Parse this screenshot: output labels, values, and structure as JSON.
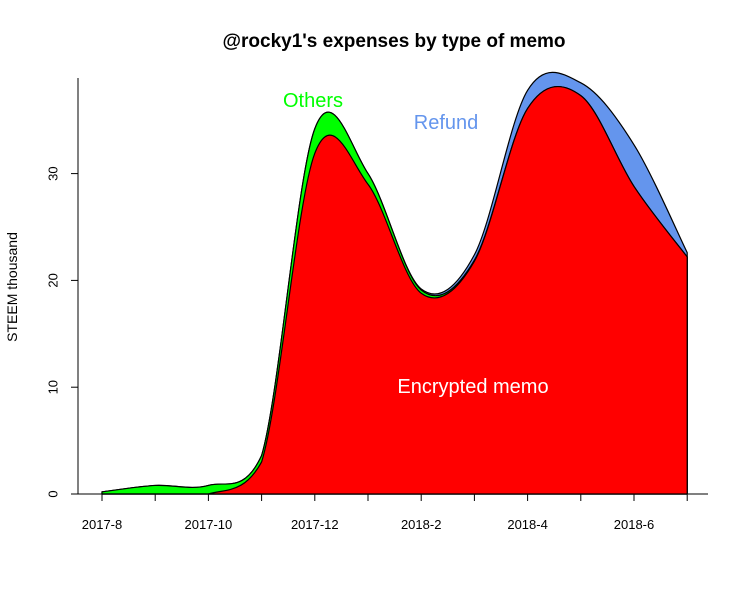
{
  "chart_data": {
    "type": "area",
    "stacked": true,
    "title": "@rocky1's expenses by type of memo",
    "xlabel": "",
    "ylabel": "STEEM thousand",
    "ylim": [
      0,
      39
    ],
    "yticks": [
      0,
      10,
      20,
      30
    ],
    "x": [
      "2017-8",
      "2017-9",
      "2017-10",
      "2017-11",
      "2017-12",
      "2018-1",
      "2018-2",
      "2018-3",
      "2018-4",
      "2018-5",
      "2018-6",
      "2018-7"
    ],
    "xtick_labels": [
      "2017-8",
      "2017-10",
      "2017-12",
      "2018-2",
      "2018-4",
      "2018-6"
    ],
    "grid": false,
    "series": [
      {
        "name": "Encrypted memo",
        "color": "#ff0000",
        "values": [
          0,
          0,
          0,
          3.0,
          31.9,
          29.0,
          18.8,
          21.8,
          36.1,
          37.3,
          28.8,
          22.2
        ]
      },
      {
        "name": "Others",
        "color": "#00ff00",
        "values": [
          0.2,
          0.8,
          0.8,
          0.6,
          2.3,
          1.0,
          0.3,
          0.1,
          0,
          0,
          0,
          0
        ]
      },
      {
        "name": "Refund",
        "color": "#6495ed",
        "values": [
          0,
          0,
          0,
          0,
          0,
          0,
          0.1,
          0.5,
          1.7,
          1.2,
          3.9,
          0.4
        ]
      }
    ]
  }
}
